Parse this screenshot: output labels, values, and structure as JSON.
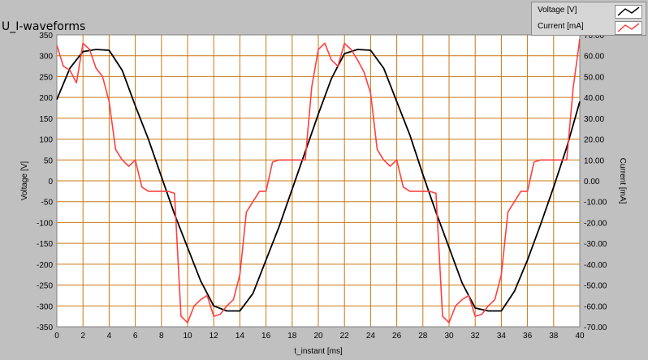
{
  "window": {
    "title": "U_I-waveforms"
  },
  "legend": {
    "items": [
      {
        "label": "Voltage [V]",
        "color": "#000000"
      },
      {
        "label": "Current [mA]",
        "color": "#ff4040"
      }
    ]
  },
  "colors": {
    "panel_bg": "#c0c0c0",
    "plot_bg": "#ffffff",
    "grid": "#c87814",
    "voltage": "#000000",
    "current": "#ff4040"
  },
  "chart_data": {
    "type": "line",
    "title": "U_I-waveforms",
    "xlabel": "t_instant [ms]",
    "ylabel": "Voltage [V]",
    "y2label": "Current [mA]",
    "xlim": [
      0,
      40
    ],
    "ylim": [
      -350,
      350
    ],
    "y2lim": [
      -70,
      70
    ],
    "grid": true,
    "legend_position": "top-right",
    "x_ticks": [
      "0",
      "2",
      "4",
      "6",
      "8",
      "10",
      "12",
      "14",
      "16",
      "18",
      "20",
      "22",
      "24",
      "26",
      "28",
      "30",
      "32",
      "34",
      "36",
      "38",
      "40"
    ],
    "y_ticks": [
      "350",
      "300",
      "250",
      "200",
      "150",
      "100",
      "50",
      "0",
      "-50",
      "-100",
      "-150",
      "-200",
      "-250",
      "-300",
      "-350"
    ],
    "y2_ticks": [
      "70.00",
      "60.00",
      "50.00",
      "40.00",
      "30.00",
      "20.00",
      "10.00",
      "0.00",
      "-10.00",
      "-20.00",
      "-30.00",
      "-40.00",
      "-50.00",
      "-60.00",
      "-70.00"
    ],
    "series": [
      {
        "name": "Voltage [V]",
        "axis": "left",
        "color": "#000000",
        "x": [
          0,
          1,
          2,
          3,
          4,
          5,
          6,
          7,
          8,
          9,
          10,
          11,
          12,
          13,
          14,
          15,
          16,
          17,
          18,
          19,
          20,
          21,
          22,
          23,
          24,
          25,
          26,
          27,
          28,
          29,
          30,
          31,
          32,
          33,
          34,
          35,
          36,
          37,
          38,
          39,
          40
        ],
        "y": [
          195,
          270,
          310,
          315,
          313,
          265,
          180,
          100,
          10,
          -80,
          -160,
          -240,
          -300,
          -312,
          -312,
          -270,
          -190,
          -110,
          -20,
          70,
          160,
          245,
          305,
          315,
          313,
          270,
          190,
          110,
          15,
          -75,
          -160,
          -245,
          -305,
          -312,
          -312,
          -265,
          -190,
          -105,
          -15,
          80,
          190
        ]
      },
      {
        "name": "Current [mA]",
        "axis": "right",
        "color": "#ff4040",
        "x": [
          0,
          0.5,
          1,
          1.5,
          2,
          2.5,
          3,
          3.5,
          4,
          4.5,
          5,
          5.5,
          6,
          6.5,
          7,
          7.5,
          8,
          8.5,
          9,
          9.5,
          10,
          10.5,
          11,
          11.5,
          12,
          12.5,
          13,
          13.5,
          14,
          14.5,
          15,
          15.5,
          16,
          16.5,
          17,
          17.5,
          18,
          18.5,
          19,
          19.5,
          20,
          20.5,
          21,
          21.5,
          22,
          22.5,
          23,
          23.5,
          24,
          24.5,
          25,
          25.5,
          26,
          26.5,
          27,
          27.5,
          28,
          28.5,
          29,
          29.5,
          30,
          30.5,
          31,
          31.5,
          32,
          32.5,
          33,
          33.5,
          34,
          34.5,
          35,
          35.5,
          36,
          36.5,
          37,
          37.5,
          38,
          38.5,
          39,
          39.5,
          40
        ],
        "y": [
          65,
          55,
          53,
          47,
          66,
          63,
          54,
          50,
          38,
          15,
          10,
          7,
          10,
          -3,
          -5,
          -5,
          -5,
          -5,
          -6,
          -65,
          -68,
          -60,
          -57,
          -55,
          -65,
          -64,
          -60,
          -57,
          -45,
          -15,
          -10,
          -5,
          -5,
          9,
          10,
          10,
          10,
          10,
          10,
          45,
          63,
          66,
          58,
          55,
          66,
          63,
          58,
          52,
          42,
          15,
          10,
          7,
          10,
          -3,
          -5,
          -5,
          -5,
          -5,
          -6,
          -65,
          -68,
          -60,
          -57,
          -55,
          -65,
          -64,
          -60,
          -57,
          -45,
          -15,
          -10,
          -5,
          -5,
          9,
          10,
          10,
          10,
          10,
          10,
          45,
          68
        ]
      }
    ]
  }
}
